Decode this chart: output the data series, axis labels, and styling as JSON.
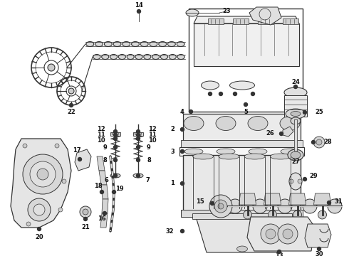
{
  "bg_color": "#ffffff",
  "line_color": "#333333",
  "text_color": "#111111",
  "font_size": 5.5,
  "label_font_size": 6.0,
  "fig_w": 4.9,
  "fig_h": 3.6,
  "dpi": 100
}
